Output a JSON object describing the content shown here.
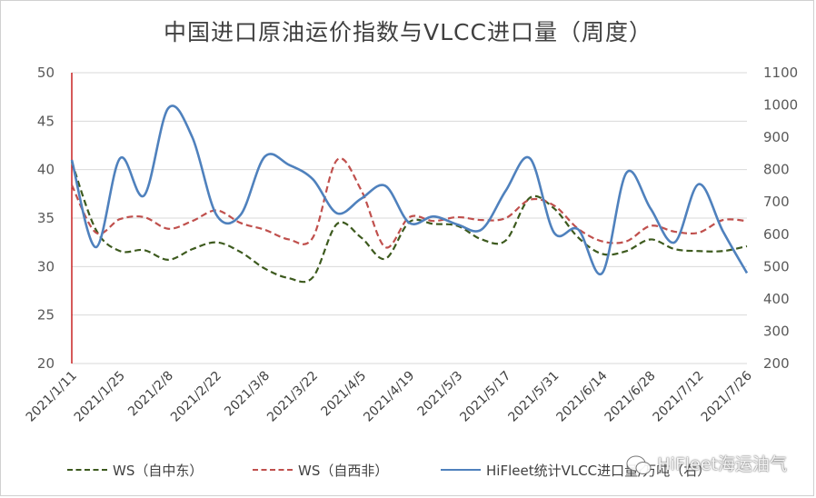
{
  "chart_data": {
    "type": "line",
    "title": "中国进口原油运价指数与VLCC进口量（周度）",
    "xlabel": "",
    "ylabel": "",
    "categories": [
      "2021/1/11",
      "2021/1/18",
      "2021/1/25",
      "2021/2/1",
      "2021/2/8",
      "2021/2/15",
      "2021/2/22",
      "2021/3/1",
      "2021/3/8",
      "2021/3/15",
      "2021/3/22",
      "2021/3/29",
      "2021/4/5",
      "2021/4/12",
      "2021/4/19",
      "2021/4/26",
      "2021/5/3",
      "2021/5/10",
      "2021/5/17",
      "2021/5/24",
      "2021/5/31",
      "2021/6/7",
      "2021/6/14",
      "2021/6/21",
      "2021/6/28",
      "2021/7/5",
      "2021/7/12",
      "2021/7/19",
      "2021/7/26"
    ],
    "x_tick_labels": [
      "2021/1/11",
      "2021/1/25",
      "2021/2/8",
      "2021/2/22",
      "2021/3/8",
      "2021/3/22",
      "2021/4/5",
      "2021/4/19",
      "2021/5/3",
      "2021/5/17",
      "2021/5/31",
      "2021/6/14",
      "2021/6/28",
      "2021/7/12",
      "2021/7/26"
    ],
    "ylim": [
      20,
      50
    ],
    "y_ticks": [
      20,
      25,
      30,
      35,
      40,
      45,
      50
    ],
    "y2lim": [
      200,
      1100
    ],
    "y2_ticks": [
      200,
      300,
      400,
      500,
      600,
      700,
      800,
      900,
      1000,
      1100
    ],
    "grid": true,
    "legend_position": "bottom",
    "series": [
      {
        "name": "WS（自中东）",
        "axis": "left",
        "style": "dashed",
        "color": "#3d5a1e",
        "values": [
          40.8,
          33.8,
          31.6,
          31.7,
          30.7,
          31.8,
          32.5,
          31.5,
          29.8,
          28.8,
          28.9,
          34.4,
          33.0,
          30.8,
          34.6,
          34.4,
          34.2,
          32.8,
          32.7,
          37.1,
          36.0,
          33.0,
          31.3,
          31.6,
          32.8,
          31.8,
          31.6,
          31.6,
          32.1
        ]
      },
      {
        "name": "WS（自西非）",
        "axis": "left",
        "style": "dashed",
        "color": "#c0504d",
        "values": [
          38.4,
          33.5,
          34.9,
          35.1,
          33.9,
          34.7,
          35.8,
          34.5,
          33.8,
          32.8,
          33.0,
          41.0,
          37.9,
          32.0,
          35.1,
          34.7,
          35.1,
          34.8,
          35.0,
          36.9,
          36.3,
          33.9,
          32.6,
          32.6,
          34.2,
          33.6,
          33.5,
          34.8,
          34.7
        ]
      },
      {
        "name": "HiFleet统计VLCC进口量/万吨（右）",
        "axis": "right",
        "style": "solid",
        "color": "#4f81bd",
        "values": [
          830,
          560,
          835,
          720,
          990,
          900,
          660,
          660,
          840,
          815,
          770,
          665,
          710,
          750,
          635,
          655,
          630,
          615,
          735,
          835,
          605,
          615,
          480,
          790,
          680,
          575,
          755,
          610,
          480
        ]
      }
    ]
  },
  "watermark": "HiFleet海运油气"
}
